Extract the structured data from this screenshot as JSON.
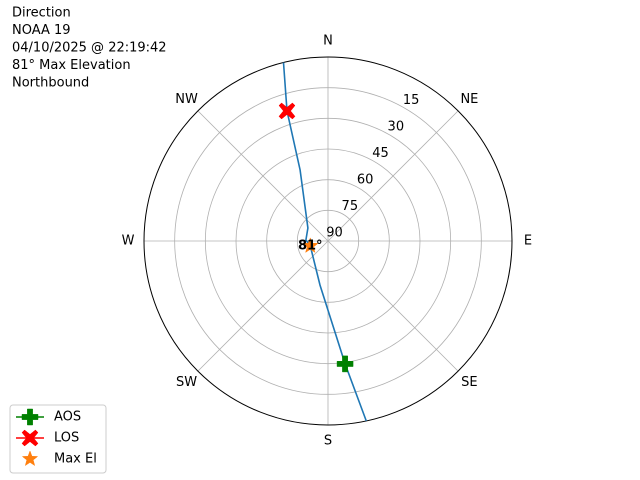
{
  "chart_data": {
    "type": "polar",
    "title_lines": [
      "Direction",
      "NOAA 19",
      "04/10/2025 @ 22:19:42",
      "81° Max Elevation",
      "Northbound"
    ],
    "xlim": [
      0,
      360
    ],
    "xticks": [
      {
        "value": 0,
        "label": "N"
      },
      {
        "value": 45,
        "label": "NE"
      },
      {
        "value": 90,
        "label": "E"
      },
      {
        "value": 135,
        "label": "SE"
      },
      {
        "value": 180,
        "label": "S"
      },
      {
        "value": 225,
        "label": "SW"
      },
      {
        "value": 270,
        "label": "W"
      },
      {
        "value": 315,
        "label": "NW"
      }
    ],
    "ylim": [
      90,
      0
    ],
    "yticks": [
      90,
      75,
      60,
      45,
      30,
      15
    ],
    "grid": true,
    "legend": "lower left",
    "track": {
      "color": "#1f77b4",
      "theta": [
        168,
        172.1,
        190.3,
        254.5,
        272.6,
        303,
        338.5,
        342.5,
        346
      ],
      "values": [
        0,
        29.3,
        68.1,
        81,
        79.2,
        78.3,
        52.7,
        23.3,
        0
      ]
    },
    "series": [
      {
        "name": "AOS",
        "color": "#008000",
        "marker": "plus",
        "theta": [
          172.1
        ],
        "values": [
          29.3
        ]
      },
      {
        "name": "LOS",
        "color": "#ff0000",
        "marker": "x",
        "theta": [
          342.5
        ],
        "values": [
          23.3
        ]
      },
      {
        "name": "Max El",
        "color": "#ff7f0e",
        "marker": "star",
        "theta": [
          254.5
        ],
        "values": [
          81
        ],
        "value_labels": [
          "81°"
        ]
      }
    ]
  }
}
